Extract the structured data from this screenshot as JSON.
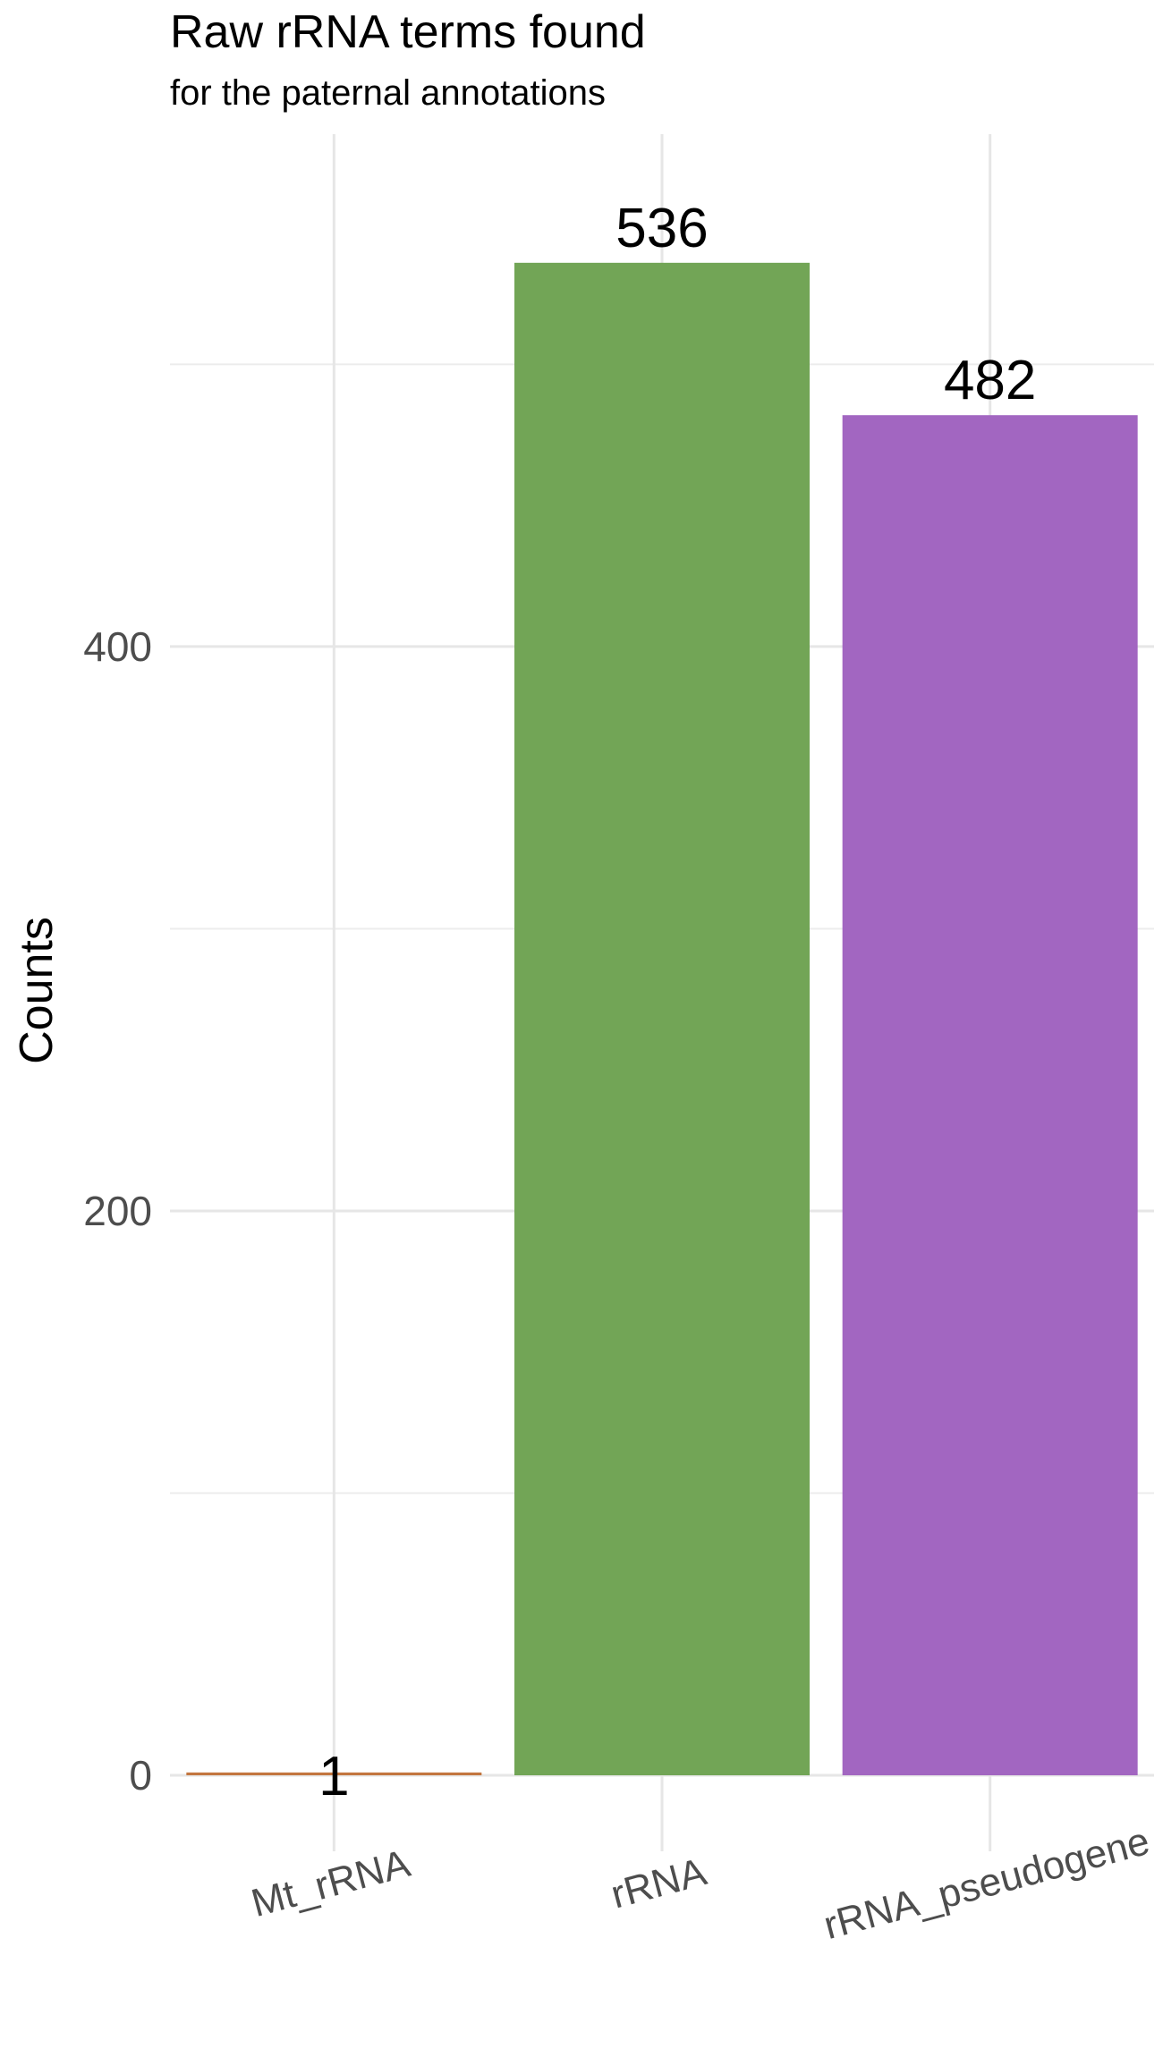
{
  "chart_data": {
    "type": "bar",
    "title": "Raw rRNA terms found",
    "subtitle": "for the paternal annotations",
    "xlabel": "",
    "ylabel": "Counts",
    "categories": [
      "Mt_rRNA",
      "rRNA",
      "rRNA_pseudogene"
    ],
    "values": [
      1,
      536,
      482
    ],
    "data_labels": [
      "1",
      "536",
      "482"
    ],
    "colors": [
      "#C3763F",
      "#72A556",
      "#A266C1"
    ],
    "ylim": [
      0,
      580
    ],
    "y_ticks": [
      0,
      200,
      400
    ],
    "y_minor_ticks": [
      100,
      300,
      500
    ],
    "grid": true,
    "legend": "none",
    "x_tick_rotation_deg": -15
  }
}
